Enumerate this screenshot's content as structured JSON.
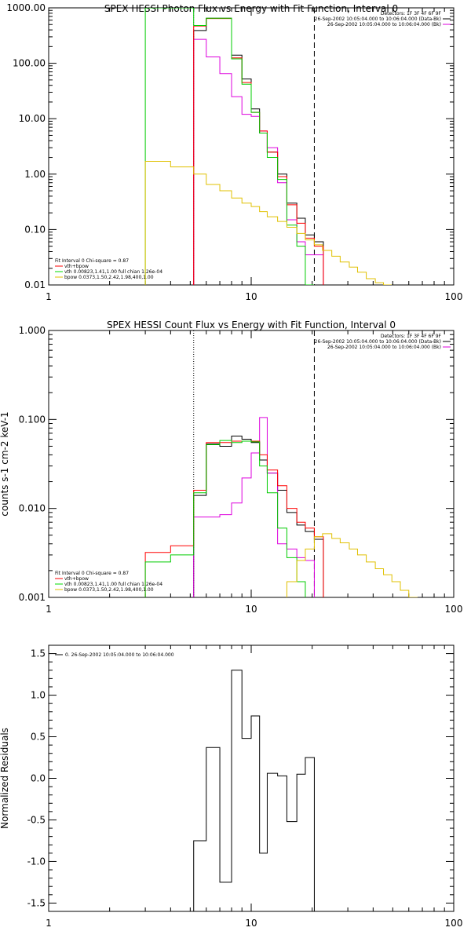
{
  "chart_data": [
    {
      "type": "line",
      "title": "SPEX HESSI Photon Flux vs Energy with Fit Function, Interval 0",
      "xscale": "log",
      "yscale": "log",
      "xlim": [
        1,
        100
      ],
      "ylim": [
        0.01,
        1000
      ],
      "xticks": [
        {
          "v": 1,
          "label": "1"
        },
        {
          "v": 10,
          "label": "10"
        },
        {
          "v": 100,
          "label": "100"
        }
      ],
      "yticks": [
        {
          "v": 0.01,
          "label": "0.01"
        },
        {
          "v": 0.1,
          "label": "0.10"
        },
        {
          "v": 1,
          "label": "1.00"
        },
        {
          "v": 10,
          "label": "10.00"
        },
        {
          "v": 100,
          "label": "100.00"
        },
        {
          "v": 1000,
          "label": "1000.00"
        }
      ],
      "ylabel": "",
      "header_lines": [
        "Detectors: 1F 3F 4F 6F 9F",
        "26-Sep-2002 10:05:04.000 to 10:06:04.000 (Data-Bk)",
        "26-Sep-2002 10:05:04.000 to 10:06:04.000 (Bk)"
      ],
      "fit_note": "Fit Interval 0   Chi-square = 0.87",
      "legend_entries": [
        {
          "label": "vth+bpow",
          "color": "#ff0000"
        },
        {
          "label": "vth 0.00823,1.41,1.00  full chian 1.26e-04",
          "color": "#00dd00"
        },
        {
          "label": "bpow 0.0373,1.50,2.42,1.98,400,1.00",
          "color": "#e0c000"
        }
      ],
      "vlines": [
        {
          "x": 5.2,
          "color": "#cc00cc",
          "style": "dotted"
        },
        {
          "x": 20.5,
          "color": "#000000",
          "style": "dashed"
        }
      ],
      "series": [
        {
          "name": "Data-Bk",
          "color": "#000000",
          "x": [
            5.2,
            6.0,
            7.0,
            8.0,
            9.0,
            10.0,
            11.0,
            12.0,
            13.5,
            15.0,
            16.8,
            18.5,
            20.5
          ],
          "y": [
            390,
            650,
            650,
            140,
            52,
            15,
            5.5,
            2.5,
            1.0,
            0.3,
            0.16,
            0.08,
            0.06
          ]
        },
        {
          "name": "Bk",
          "color": "#dd00dd",
          "x": [
            5.2,
            6.0,
            7.0,
            8.0,
            9.0,
            10.0,
            11.0,
            12.0,
            13.5,
            15.0,
            16.8,
            18.5,
            20.5
          ],
          "y": [
            270,
            130,
            65,
            25,
            12,
            11,
            6,
            3,
            0.7,
            0.15,
            0.06,
            0.035,
            0.035
          ]
        },
        {
          "name": "vth+bpow",
          "color": "#ff0000",
          "x": [
            5.2,
            6.0,
            7.0,
            8.0,
            9.0,
            10.0,
            11.0,
            12.0,
            13.5,
            15.0,
            16.8,
            18.5,
            20.5
          ],
          "y": [
            470,
            640,
            640,
            125,
            45,
            13,
            6,
            2.5,
            0.9,
            0.28,
            0.13,
            0.07,
            0.05
          ]
        },
        {
          "name": "vth",
          "color": "#00cc00",
          "x": [
            3.0,
            5.2,
            6.0,
            7.0,
            8.0,
            9.0,
            10.0,
            11.0,
            12.0,
            13.5,
            15.0,
            16.8,
            18.5
          ],
          "y": [
            1000,
            480,
            650,
            650,
            120,
            42,
            13,
            5.5,
            2.0,
            0.8,
            0.12,
            0.05,
            0.01
          ]
        },
        {
          "name": "bpow",
          "color": "#e0c000",
          "x": [
            3.0,
            4.0,
            5.2,
            6.0,
            7.0,
            8.0,
            9.0,
            10.0,
            11.0,
            12.0,
            13.5,
            15.0,
            16.8,
            18.5,
            20.5,
            22.5,
            25.0,
            27.5,
            30.5,
            33.5,
            37.0,
            41.0,
            45.0
          ],
          "y": [
            1.7,
            1.35,
            1.0,
            0.65,
            0.5,
            0.37,
            0.3,
            0.26,
            0.21,
            0.17,
            0.14,
            0.11,
            0.085,
            0.065,
            0.053,
            0.042,
            0.033,
            0.026,
            0.021,
            0.017,
            0.013,
            0.011,
            0.01
          ]
        }
      ]
    },
    {
      "type": "line",
      "title": "SPEX HESSI Count Flux vs Energy with Fit Function, Interval 0",
      "xscale": "log",
      "yscale": "log",
      "xlim": [
        1,
        100
      ],
      "ylim": [
        0.001,
        1
      ],
      "xticks": [
        {
          "v": 1,
          "label": "1"
        },
        {
          "v": 10,
          "label": "10"
        },
        {
          "v": 100,
          "label": "100"
        }
      ],
      "yticks": [
        {
          "v": 0.001,
          "label": "0.001"
        },
        {
          "v": 0.01,
          "label": "0.010"
        },
        {
          "v": 0.1,
          "label": "0.100"
        },
        {
          "v": 1,
          "label": "1.000"
        }
      ],
      "ylabel": "counts s-1 cm-2 keV-1",
      "header_lines": [
        "Detectors: 1F 3F 4F 6F 9F",
        "26-Sep-2002 10:05:04.000 to 10:06:04.000 (Data-Bk)",
        "26-Sep-2002 10:05:04.000 to 10:06:04.000 (Bk)"
      ],
      "fit_note": "Fit Interval 0   Chi-square = 0.87",
      "legend_entries": [
        {
          "label": "vth+bpow",
          "color": "#ff0000"
        },
        {
          "label": "vth 0.00823,1.41,1.00  full chian 1.26e-04",
          "color": "#00dd00"
        },
        {
          "label": "bpow 0.0373,1.50,2.42,1.98,400,1.00",
          "color": "#e0c000"
        }
      ],
      "vlines": [
        {
          "x": 5.2,
          "color": "#000000",
          "style": "dotted"
        },
        {
          "x": 20.5,
          "color": "#000000",
          "style": "dashed"
        }
      ],
      "series": [
        {
          "name": "Data-Bk",
          "color": "#000000",
          "x": [
            5.2,
            6.0,
            7.0,
            8.0,
            9.0,
            10.0,
            11.0,
            12.0,
            13.5,
            15.0,
            16.8,
            18.5,
            20.5
          ],
          "y": [
            0.014,
            0.053,
            0.05,
            0.065,
            0.06,
            0.055,
            0.035,
            0.025,
            0.016,
            0.009,
            0.0065,
            0.0055,
            0.0045
          ]
        },
        {
          "name": "Bk",
          "color": "#dd00dd",
          "x": [
            5.2,
            6.0,
            7.0,
            8.0,
            9.0,
            10.0,
            11.0,
            12.0,
            13.5,
            15.0,
            16.8,
            18.5,
            20.5
          ],
          "y": [
            0.008,
            0.008,
            0.0085,
            0.0115,
            0.022,
            0.042,
            0.105,
            0.025,
            0.004,
            0.0035,
            0.0028,
            0.0026,
            0.0009
          ]
        },
        {
          "name": "vth+bpow",
          "color": "#ff0000",
          "x": [
            3.0,
            4.0,
            5.2,
            6.0,
            7.0,
            8.0,
            9.0,
            10.0,
            11.0,
            12.0,
            13.5,
            15.0,
            16.8,
            18.5,
            20.5
          ],
          "y": [
            0.0032,
            0.0038,
            0.016,
            0.055,
            0.055,
            0.057,
            0.057,
            0.057,
            0.04,
            0.027,
            0.018,
            0.01,
            0.007,
            0.006,
            0.0048
          ]
        },
        {
          "name": "vth",
          "color": "#00cc00",
          "x": [
            3.0,
            4.0,
            5.2,
            6.0,
            7.0,
            8.0,
            9.0,
            10.0,
            11.0,
            12.0,
            13.5,
            15.0,
            16.8,
            18.5
          ],
          "y": [
            0.0025,
            0.003,
            0.015,
            0.052,
            0.058,
            0.055,
            0.057,
            0.056,
            0.03,
            0.015,
            0.006,
            0.0028,
            0.0015,
            0.0008
          ]
        },
        {
          "name": "bpow",
          "color": "#e0c000",
          "x": [
            13.5,
            15.0,
            16.8,
            18.5,
            20.5,
            22.5,
            25.0,
            27.5,
            30.5,
            33.5,
            37.0,
            41.0,
            45.0,
            49.5,
            54.5,
            60.0,
            66.0
          ],
          "y": [
            0.0009,
            0.0015,
            0.0026,
            0.0035,
            0.0048,
            0.0052,
            0.0046,
            0.0041,
            0.0035,
            0.003,
            0.0025,
            0.0021,
            0.0018,
            0.0015,
            0.0012,
            0.001,
            0.0008
          ]
        }
      ]
    },
    {
      "type": "line",
      "title": "",
      "xscale": "log",
      "yscale": "linear",
      "xlim": [
        1,
        100
      ],
      "ylim": [
        -1.6,
        1.6
      ],
      "xticks": [
        {
          "v": 1,
          "label": "1"
        },
        {
          "v": 10,
          "label": "10"
        },
        {
          "v": 100,
          "label": "100"
        }
      ],
      "yticks": [
        {
          "v": -1.5,
          "label": "-1.5"
        },
        {
          "v": -1.0,
          "label": "-1.0"
        },
        {
          "v": -0.5,
          "label": "-0.5"
        },
        {
          "v": 0.0,
          "label": "0.0"
        },
        {
          "v": 0.5,
          "label": "0.5"
        },
        {
          "v": 1.0,
          "label": "1.0"
        },
        {
          "v": 1.5,
          "label": "1.5"
        }
      ],
      "ylabel": "Normalized Residuals",
      "header_lines": [],
      "fit_note": "",
      "legend_entries": [
        {
          "label": "0. 26-Sep-2002 10:05:04.000 to 10:06:04.000",
          "color": "#000000"
        }
      ],
      "vlines": [],
      "series": [
        {
          "name": "0. 26-Sep-2002 10:05:04.000 to 10:06:04.000",
          "color": "#000000",
          "x": [
            5.2,
            6.0,
            7.0,
            8.0,
            9.0,
            10.0,
            11.0,
            12.0,
            13.5,
            15.0,
            16.8,
            18.5,
            20.5
          ],
          "y": [
            -0.75,
            0.37,
            -1.25,
            1.3,
            0.48,
            0.75,
            -0.9,
            0.06,
            0.03,
            -0.52,
            0.05,
            0.25,
            -1.6
          ]
        }
      ]
    }
  ]
}
